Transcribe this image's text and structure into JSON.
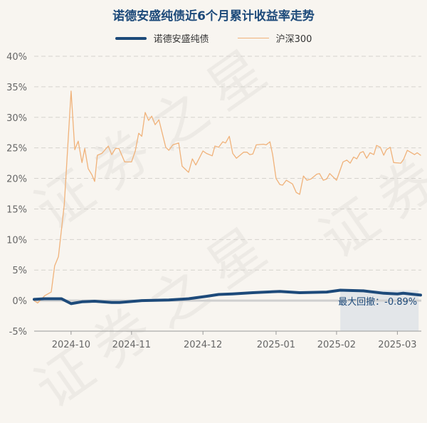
{
  "chart_data": {
    "type": "line",
    "title": "诺德安盛纯债近6个月累计收益率走势",
    "xlabel": "",
    "ylabel": "",
    "x_unit": "trading-day index",
    "xlim": [
      0,
      113.3
    ],
    "ylim": [
      -5,
      40
    ],
    "yticks": [
      -5,
      0,
      5,
      10,
      15,
      20,
      25,
      30,
      35,
      40
    ],
    "ytick_labels": [
      "-5%",
      "0%",
      "5%",
      "10%",
      "15%",
      "20%",
      "25%",
      "30%",
      "35%",
      "40%"
    ],
    "xticks": [
      {
        "x": 10.8,
        "label": "2024-10"
      },
      {
        "x": 28.5,
        "label": "2024-11"
      },
      {
        "x": 49.4,
        "label": "2024-12"
      },
      {
        "x": 70.8,
        "label": "2025-01"
      },
      {
        "x": 88.5,
        "label": "2025-02"
      },
      {
        "x": 106.3,
        "label": "2025-03"
      }
    ],
    "grid": true,
    "legend_position": "top-center",
    "series": [
      {
        "name": "诺德安盛纯债",
        "color": "#1d4a7a",
        "points": [
          [
            0,
            0.2
          ],
          [
            3,
            0.3
          ],
          [
            8,
            0.3
          ],
          [
            10.8,
            -0.5
          ],
          [
            14,
            -0.2
          ],
          [
            17.7,
            -0.1
          ],
          [
            22.7,
            -0.3
          ],
          [
            25,
            -0.3
          ],
          [
            31.5,
            0
          ],
          [
            39.4,
            0.1
          ],
          [
            45.2,
            0.3
          ],
          [
            50.4,
            0.7
          ],
          [
            54,
            1.0
          ],
          [
            58,
            1.1
          ],
          [
            64,
            1.3
          ],
          [
            71.9,
            1.5
          ],
          [
            77.7,
            1.3
          ],
          [
            85.6,
            1.4
          ],
          [
            89.6,
            1.7
          ],
          [
            96.3,
            1.6
          ],
          [
            102.3,
            1.2
          ],
          [
            106.3,
            1.1
          ],
          [
            108,
            1.2
          ],
          [
            113.1,
            0.9
          ]
        ]
      },
      {
        "name": "沪深300",
        "color": "#f0b27a",
        "points": [
          [
            0,
            0
          ],
          [
            1,
            -0.4
          ],
          [
            3.1,
            0.8
          ],
          [
            5,
            1.4
          ],
          [
            6,
            5.7
          ],
          [
            7.1,
            7.2
          ],
          [
            8.8,
            15.7
          ],
          [
            10.8,
            34.3
          ],
          [
            11.9,
            24.7
          ],
          [
            12.9,
            26.1
          ],
          [
            14,
            22.6
          ],
          [
            14.8,
            24.9
          ],
          [
            15.8,
            21.6
          ],
          [
            16.9,
            20.6
          ],
          [
            17.7,
            19.5
          ],
          [
            18.5,
            23.8
          ],
          [
            19.8,
            24.1
          ],
          [
            21.7,
            25.3
          ],
          [
            22.7,
            23.9
          ],
          [
            23.8,
            24.9
          ],
          [
            24.8,
            24.9
          ],
          [
            26.5,
            22.7
          ],
          [
            28.5,
            22.7
          ],
          [
            29.6,
            24.5
          ],
          [
            30.6,
            27.4
          ],
          [
            31.5,
            26.9
          ],
          [
            32.5,
            30.8
          ],
          [
            33.5,
            29.5
          ],
          [
            34.4,
            30.2
          ],
          [
            35.4,
            28.8
          ],
          [
            36.5,
            29.6
          ],
          [
            38.5,
            25.1
          ],
          [
            39.4,
            24.6
          ],
          [
            40.6,
            25.5
          ],
          [
            42.3,
            25.8
          ],
          [
            43.3,
            22.0
          ],
          [
            45.2,
            21.0
          ],
          [
            46.3,
            23.2
          ],
          [
            47.3,
            22.2
          ],
          [
            49.4,
            24.5
          ],
          [
            50.4,
            24.1
          ],
          [
            52.1,
            23.7
          ],
          [
            52.9,
            25.3
          ],
          [
            54,
            25.1
          ],
          [
            55.2,
            26.0
          ],
          [
            56,
            25.8
          ],
          [
            57.1,
            26.9
          ],
          [
            58.1,
            24.1
          ],
          [
            59.2,
            23.3
          ],
          [
            61.3,
            24.3
          ],
          [
            62.3,
            24.3
          ],
          [
            63.1,
            23.9
          ],
          [
            64,
            24.0
          ],
          [
            65,
            25.5
          ],
          [
            67.1,
            25.6
          ],
          [
            67.9,
            25.5
          ],
          [
            69,
            26.0
          ],
          [
            69.8,
            23.9
          ],
          [
            70.8,
            20.0
          ],
          [
            71.9,
            19.0
          ],
          [
            72.7,
            18.9
          ],
          [
            73.8,
            19.7
          ],
          [
            75.6,
            19.1
          ],
          [
            76.7,
            17.7
          ],
          [
            77.7,
            17.4
          ],
          [
            78.8,
            20.4
          ],
          [
            79.8,
            19.7
          ],
          [
            81,
            19.9
          ],
          [
            82.7,
            20.7
          ],
          [
            83.5,
            20.8
          ],
          [
            84.6,
            19.7
          ],
          [
            85.6,
            19.9
          ],
          [
            86.5,
            20.8
          ],
          [
            88.5,
            19.7
          ],
          [
            90.4,
            22.7
          ],
          [
            91.5,
            23.0
          ],
          [
            92.5,
            22.5
          ],
          [
            93.5,
            23.5
          ],
          [
            94.4,
            23.2
          ],
          [
            95.4,
            24.2
          ],
          [
            96.3,
            24.4
          ],
          [
            97.3,
            23.3
          ],
          [
            98.3,
            24.2
          ],
          [
            99.4,
            23.9
          ],
          [
            100.2,
            25.4
          ],
          [
            101.3,
            25.1
          ],
          [
            102.3,
            23.8
          ],
          [
            103.1,
            24.7
          ],
          [
            104.2,
            25.1
          ],
          [
            105.2,
            22.6
          ],
          [
            107.3,
            22.5
          ],
          [
            108.1,
            23.1
          ],
          [
            109.2,
            24.6
          ],
          [
            111.3,
            23.9
          ],
          [
            112.1,
            24.2
          ],
          [
            113.1,
            23.8
          ]
        ]
      }
    ],
    "annotations": [
      {
        "text": "最大回撤：-0.89%",
        "range_x": [
          89.6,
          112.5
        ],
        "range_y": [
          -5,
          1.7
        ],
        "color": "#1d4a7a"
      }
    ]
  },
  "watermark": "证券之星"
}
